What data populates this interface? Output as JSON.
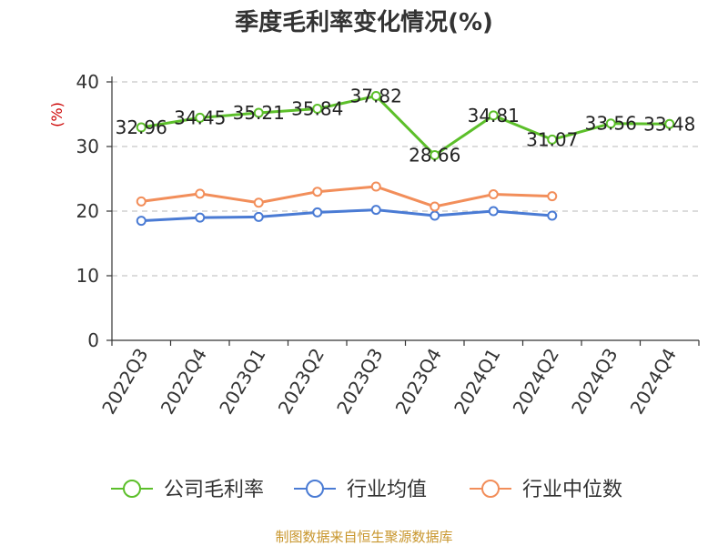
{
  "chart_data": {
    "type": "line",
    "title": "季度毛利率变化情况(%)",
    "ylabel": "(%)",
    "xlabel": "",
    "ylim": [
      0,
      40
    ],
    "yticks": [
      0,
      10,
      20,
      30,
      40
    ],
    "grid": "horizontal-dashed",
    "legend_position": "bottom",
    "categories": [
      "2022Q3",
      "2022Q4",
      "2023Q1",
      "2023Q2",
      "2023Q3",
      "2023Q4",
      "2024Q1",
      "2024Q2",
      "2024Q3",
      "2024Q4"
    ],
    "series": [
      {
        "name": "公司毛利率",
        "color": "#5cbf2a",
        "values": [
          32.96,
          34.45,
          35.21,
          35.84,
          37.82,
          28.66,
          34.81,
          31.07,
          33.56,
          33.48
        ],
        "labels": [
          "32.96",
          "34.45",
          "35.21",
          "35.84",
          "37.82",
          "28.66",
          "34.81",
          "31.07",
          "33.56",
          "33.48"
        ]
      },
      {
        "name": "行业均值",
        "color": "#4a7bd4",
        "values": [
          18.5,
          19.0,
          19.1,
          19.8,
          20.2,
          19.3,
          20.0,
          19.3,
          null,
          null
        ]
      },
      {
        "name": "行业中位数",
        "color": "#f28e5a",
        "values": [
          21.5,
          22.7,
          21.3,
          23.0,
          23.8,
          20.7,
          22.6,
          22.3,
          null,
          null
        ]
      }
    ],
    "source": "制图数据来自恒生聚源数据库"
  }
}
